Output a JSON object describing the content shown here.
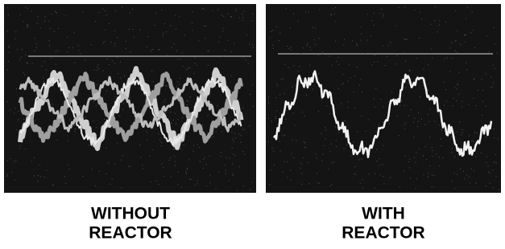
{
  "panels": [
    {
      "label_lines": [
        "WITHOUT",
        "REACTOR"
      ]
    },
    {
      "label_lines": [
        "WITH",
        "REACTOR"
      ]
    }
  ]
}
